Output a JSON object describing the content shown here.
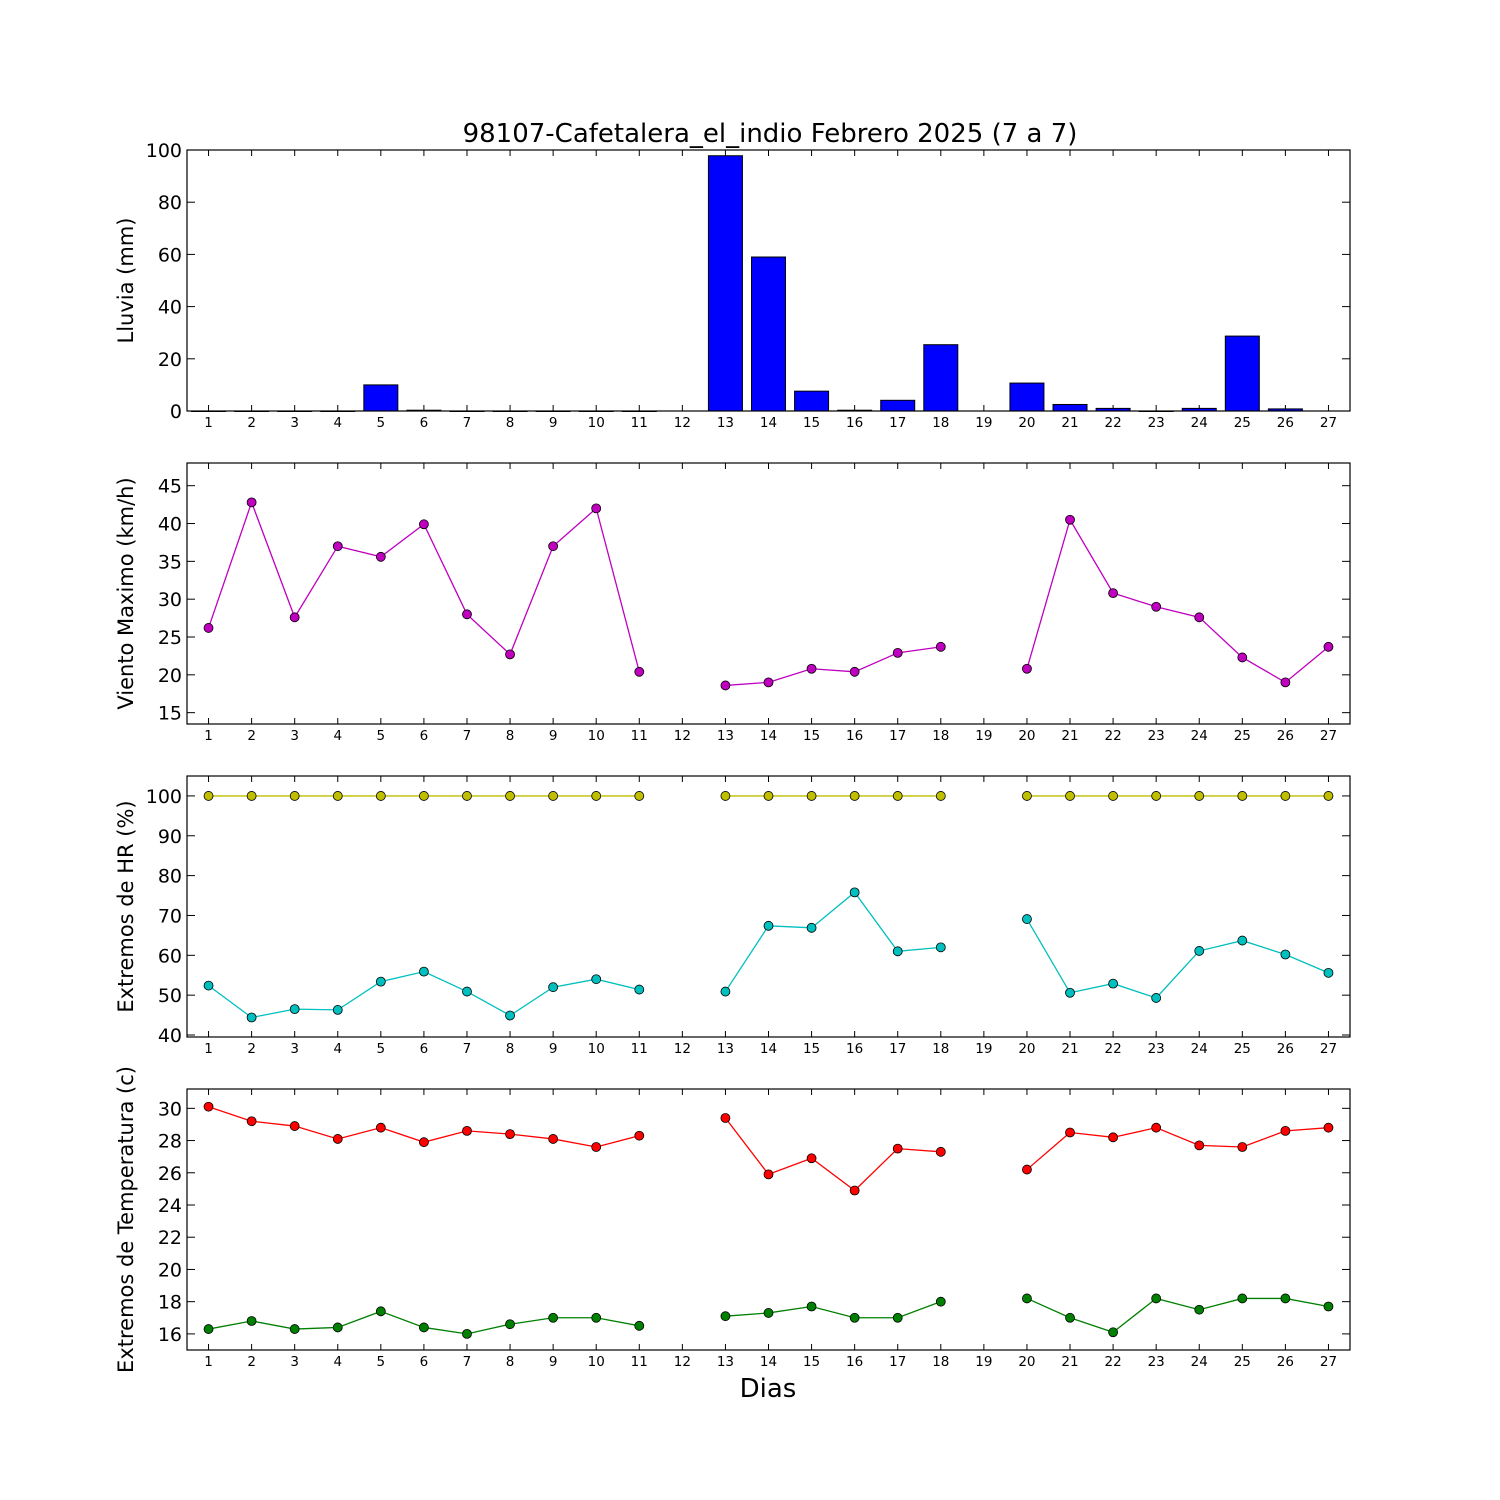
{
  "title": "98107-Cafetalera_el_indio Febrero 2025  (7 a 7)",
  "x_axis_label": "Dias",
  "colors": {
    "rain_bar": "#0000ff",
    "wind": "#bf00bf",
    "hr_max": "#bfbf00",
    "hr_min": "#00bfbf",
    "temp_max": "#ff0000",
    "temp_min": "#008000"
  },
  "chart_data": [
    {
      "type": "bar",
      "ylabel": "Lluvia (mm)",
      "ylim": [
        0,
        100
      ],
      "yticks": [
        0,
        20,
        40,
        60,
        80,
        100
      ],
      "xticks": [
        1,
        2,
        3,
        4,
        5,
        6,
        7,
        8,
        9,
        10,
        11,
        12,
        13,
        14,
        15,
        16,
        17,
        18,
        19,
        20,
        21,
        22,
        23,
        24,
        25,
        26,
        27
      ],
      "series": [
        {
          "x": [
            1,
            2,
            3,
            4,
            5,
            6,
            7,
            8,
            9,
            10,
            11,
            13,
            14,
            15,
            16,
            17,
            18,
            20,
            21,
            22,
            23,
            24,
            25,
            26
          ],
          "values": [
            0,
            0,
            0,
            0,
            10,
            0.3,
            0,
            0,
            0,
            0,
            0,
            97.8,
            59,
            7.6,
            0.3,
            4.1,
            25.4,
            10.7,
            2.5,
            1,
            0,
            1,
            28.7,
            0.8
          ]
        }
      ]
    },
    {
      "type": "line",
      "ylabel": "Viento Maximo (km/h)",
      "ylim": [
        13.5,
        48
      ],
      "yticks": [
        15,
        20,
        25,
        30,
        35,
        40,
        45
      ],
      "xticks": [
        1,
        2,
        3,
        4,
        5,
        6,
        7,
        8,
        9,
        10,
        11,
        12,
        13,
        14,
        15,
        16,
        17,
        18,
        19,
        20,
        21,
        22,
        23,
        24,
        25,
        26,
        27
      ],
      "series": [
        {
          "x": [
            1,
            2,
            3,
            4,
            5,
            6,
            7,
            8,
            9,
            10,
            11,
            12,
            13,
            14,
            15,
            16,
            17,
            18,
            19,
            20,
            21,
            22,
            23,
            24,
            25,
            26,
            27
          ],
          "values": [
            26.2,
            42.8,
            27.6,
            37.0,
            35.6,
            39.9,
            28.0,
            22.7,
            37.0,
            42.0,
            20.4,
            null,
            18.6,
            19.0,
            20.8,
            20.4,
            22.9,
            23.7,
            null,
            20.8,
            40.5,
            30.8,
            29.0,
            27.6,
            22.3,
            19.0,
            23.7
          ]
        }
      ]
    },
    {
      "type": "line",
      "ylabel": "Extremos de HR (%)",
      "ylim": [
        39.5,
        105
      ],
      "yticks": [
        40,
        50,
        60,
        70,
        80,
        90,
        100
      ],
      "xticks": [
        1,
        2,
        3,
        4,
        5,
        6,
        7,
        8,
        9,
        10,
        11,
        12,
        13,
        14,
        15,
        16,
        17,
        18,
        19,
        20,
        21,
        22,
        23,
        24,
        25,
        26,
        27
      ],
      "series": [
        {
          "x": [
            1,
            2,
            3,
            4,
            5,
            6,
            7,
            8,
            9,
            10,
            11,
            12,
            13,
            14,
            15,
            16,
            17,
            18,
            19,
            20,
            21,
            22,
            23,
            24,
            25,
            26,
            27
          ],
          "values": [
            100,
            100,
            100,
            100,
            100,
            100,
            100,
            100,
            100,
            100,
            100,
            null,
            100,
            100,
            100,
            100,
            100,
            100,
            null,
            100,
            100,
            100,
            100,
            100,
            100,
            100,
            100
          ]
        },
        {
          "x": [
            1,
            2,
            3,
            4,
            5,
            6,
            7,
            8,
            9,
            10,
            11,
            12,
            13,
            14,
            15,
            16,
            17,
            18,
            19,
            20,
            21,
            22,
            23,
            24,
            25,
            26,
            27
          ],
          "values": [
            52.4,
            44.4,
            46.5,
            46.3,
            53.4,
            55.9,
            50.9,
            44.9,
            52.0,
            54.0,
            51.4,
            null,
            50.9,
            67.4,
            66.9,
            75.8,
            61.0,
            62.0,
            null,
            69.1,
            50.6,
            52.9,
            49.3,
            61.1,
            63.7,
            60.2,
            55.6
          ]
        }
      ]
    },
    {
      "type": "line",
      "ylabel": "Extremos de Temperatura (c)",
      "ylim": [
        15,
        31.2
      ],
      "yticks": [
        16,
        18,
        20,
        22,
        24,
        26,
        28,
        30
      ],
      "xticks": [
        1,
        2,
        3,
        4,
        5,
        6,
        7,
        8,
        9,
        10,
        11,
        12,
        13,
        14,
        15,
        16,
        17,
        18,
        19,
        20,
        21,
        22,
        23,
        24,
        25,
        26,
        27
      ],
      "series": [
        {
          "x": [
            1,
            2,
            3,
            4,
            5,
            6,
            7,
            8,
            9,
            10,
            11,
            12,
            13,
            14,
            15,
            16,
            17,
            18,
            19,
            20,
            21,
            22,
            23,
            24,
            25,
            26,
            27
          ],
          "values": [
            30.1,
            29.2,
            28.9,
            28.1,
            28.8,
            27.9,
            28.6,
            28.4,
            28.1,
            27.6,
            28.3,
            null,
            29.4,
            25.9,
            26.9,
            24.9,
            27.5,
            27.3,
            null,
            26.2,
            28.5,
            28.2,
            28.8,
            27.7,
            27.6,
            28.6,
            28.8
          ]
        },
        {
          "x": [
            1,
            2,
            3,
            4,
            5,
            6,
            7,
            8,
            9,
            10,
            11,
            12,
            13,
            14,
            15,
            16,
            17,
            18,
            19,
            20,
            21,
            22,
            23,
            24,
            25,
            26,
            27
          ],
          "values": [
            16.3,
            16.8,
            16.3,
            16.4,
            17.4,
            16.4,
            16.0,
            16.6,
            17.0,
            17.0,
            16.5,
            null,
            17.1,
            17.3,
            17.7,
            17.0,
            17.0,
            18.0,
            null,
            18.2,
            17.0,
            16.1,
            18.2,
            17.5,
            18.2,
            18.2,
            17.7
          ]
        }
      ]
    }
  ]
}
